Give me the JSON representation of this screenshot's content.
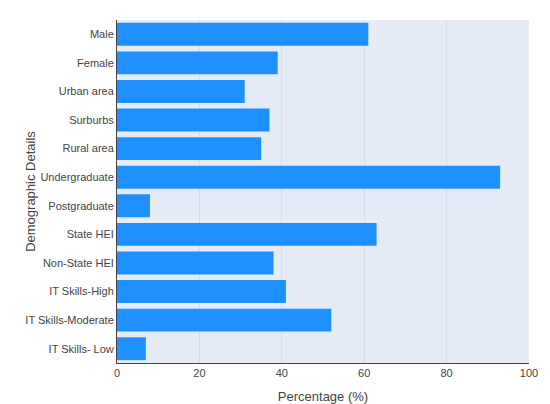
{
  "chart_data": {
    "type": "bar",
    "orientation": "horizontal",
    "categories": [
      "IT Skills- Low",
      "IT Skills-Moderate",
      "IT Skills-High",
      "Non-State HEI",
      "State HEI",
      "Postgraduate",
      "Undergraduate",
      "Rural area",
      "Surburbs",
      "Urban area",
      "Female",
      "Male"
    ],
    "values": [
      7,
      52,
      41,
      38,
      63,
      8,
      93,
      35,
      37,
      31,
      39,
      61
    ],
    "color": "#1E90FF",
    "xlabel": "Percentage (%)",
    "ylabel": "Demographic Details",
    "xlim": [
      0,
      100
    ],
    "xticks": [
      0,
      20,
      40,
      60,
      80,
      100
    ],
    "grid": true
  }
}
